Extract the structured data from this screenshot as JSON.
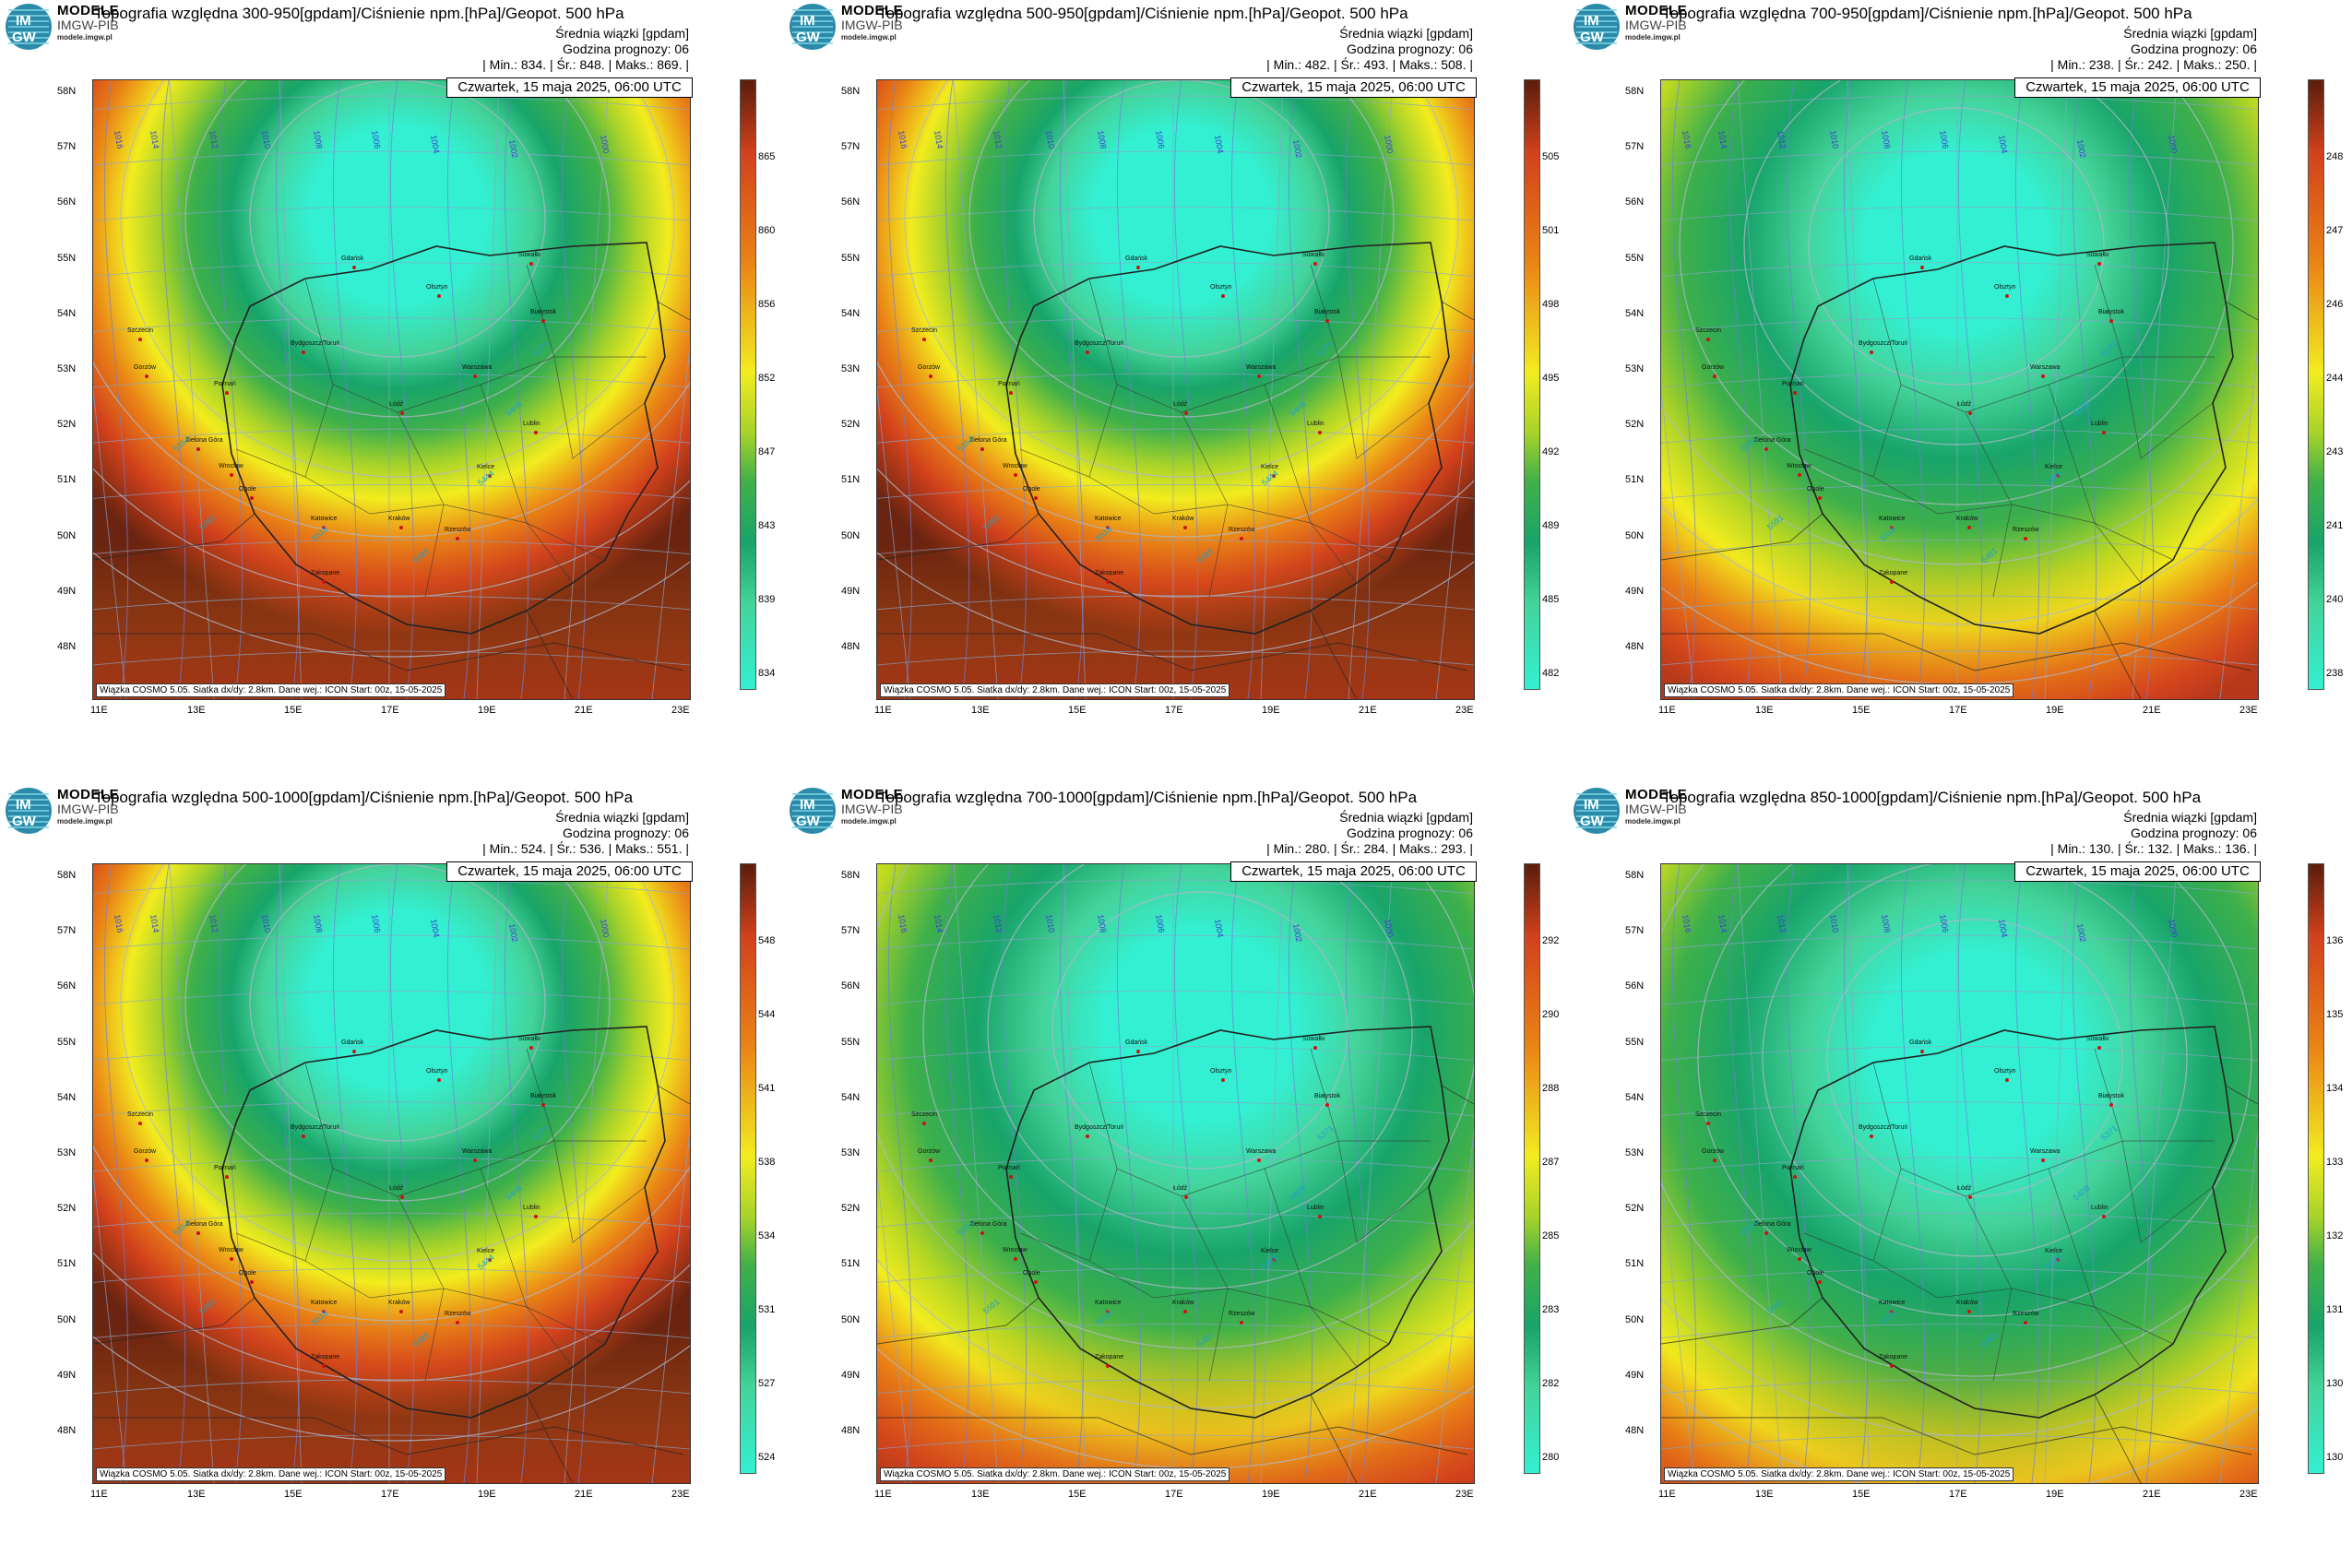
{
  "brand": {
    "line1": "MODELE",
    "line2": "IMGW-PIB",
    "line3": "modele.imgw.pl",
    "logo_top": "IM",
    "logo_bottom": "GW"
  },
  "common": {
    "subtitle": "Średnia wiązki [gpdam]",
    "forecast_hour": "Godzina prognozy: 06",
    "date": "Czwartek, 15 maja 2025, 06:00 UTC",
    "footer": "Wiązka COSMO 5.05. Siatka dx/dy: 2.8km. Dane wej.: ICON Start: 00z, 15-05-2025",
    "lat_labels": [
      "58N",
      "57N",
      "56N",
      "55N",
      "54N",
      "53N",
      "52N",
      "51N",
      "50N",
      "49N",
      "48N"
    ],
    "lon_labels": [
      "11E",
      "13E",
      "15E",
      "17E",
      "19E",
      "21E",
      "23E"
    ],
    "cities": [
      "Gdańsk",
      "Olsztyn",
      "Suwałki",
      "Białystok",
      "Szczecin",
      "Bydgoszcz/Toruń",
      "Gorzów",
      "Poznań",
      "Warszawa",
      "Łódź",
      "Lublin",
      "Zielona Góra",
      "Wrocław",
      "Opole",
      "Kielce",
      "Katowice",
      "Kraków",
      "Rzeszów",
      "Zakopane"
    ],
    "isobars": [
      "1016",
      "1014",
      "1012",
      "1010",
      "1008",
      "1006",
      "1004",
      "1002",
      "1000"
    ],
    "geopot": [
      "5591",
      "5554",
      "5518",
      "5481",
      "5444",
      "5408",
      "5371"
    ],
    "colors": {
      "low": "#33f0d2",
      "mid": "#18a46a",
      "yellow": "#f2ec1e",
      "orange": "#ea8416",
      "red": "#d2411c",
      "dark": "#6b2410"
    }
  },
  "panels": [
    {
      "title": "Topografia względna 300-950[gpdam]/Ciśnienie npm.[hPa]/Geopot. 500 hPa",
      "stats": "| Min.:    834. | Śr.:     848. | Maks.:    869. |",
      "colorbar": [
        "865",
        "860",
        "856",
        "852",
        "847",
        "843",
        "839",
        "834"
      ],
      "min": 834,
      "mean": 848,
      "max": 869
    },
    {
      "title": "Topografia względna 500-950[gpdam]/Ciśnienie npm.[hPa]/Geopot. 500 hPa",
      "stats": "| Min.:    482. | Śr.:     493. | Maks.:    508. |",
      "colorbar": [
        "505",
        "501",
        "498",
        "495",
        "492",
        "489",
        "485",
        "482"
      ],
      "min": 482,
      "mean": 493,
      "max": 508
    },
    {
      "title": "Topografia względna 700-950[gpdam]/Ciśnienie npm.[hPa]/Geopot. 500 hPa",
      "stats": "| Min.:    238. | Śr.:     242. | Maks.:    250. |",
      "colorbar": [
        "248",
        "247",
        "246",
        "244",
        "243",
        "241",
        "240",
        "238"
      ],
      "min": 238,
      "mean": 242,
      "max": 250
    },
    {
      "title": "Topografia względna 500-1000[gpdam]/Ciśnienie npm.[hPa]/Geopot. 500 hPa",
      "stats": "| Min.:    524. | Śr.:     536. | Maks.:    551. |",
      "colorbar": [
        "548",
        "544",
        "541",
        "538",
        "534",
        "531",
        "527",
        "524"
      ],
      "min": 524,
      "mean": 536,
      "max": 551
    },
    {
      "title": "Topografia względna 700-1000[gpdam]/Ciśnienie npm.[hPa]/Geopot. 500 hPa",
      "stats": "| Min.:    280. | Śr.:     284. | Maks.:    293. |",
      "colorbar": [
        "292",
        "290",
        "288",
        "287",
        "285",
        "283",
        "282",
        "280"
      ],
      "min": 280,
      "mean": 284,
      "max": 293
    },
    {
      "title": "Topografia względna 850-1000[gpdam]/Ciśnienie npm.[hPa]/Geopot. 500 hPa",
      "stats": "| Min.:    130. | Śr.:     132. | Maks.:    136. |",
      "colorbar": [
        "136",
        "135",
        "134",
        "133",
        "132",
        "131",
        "130",
        "130"
      ],
      "min": 130,
      "mean": 132,
      "max": 136
    }
  ]
}
